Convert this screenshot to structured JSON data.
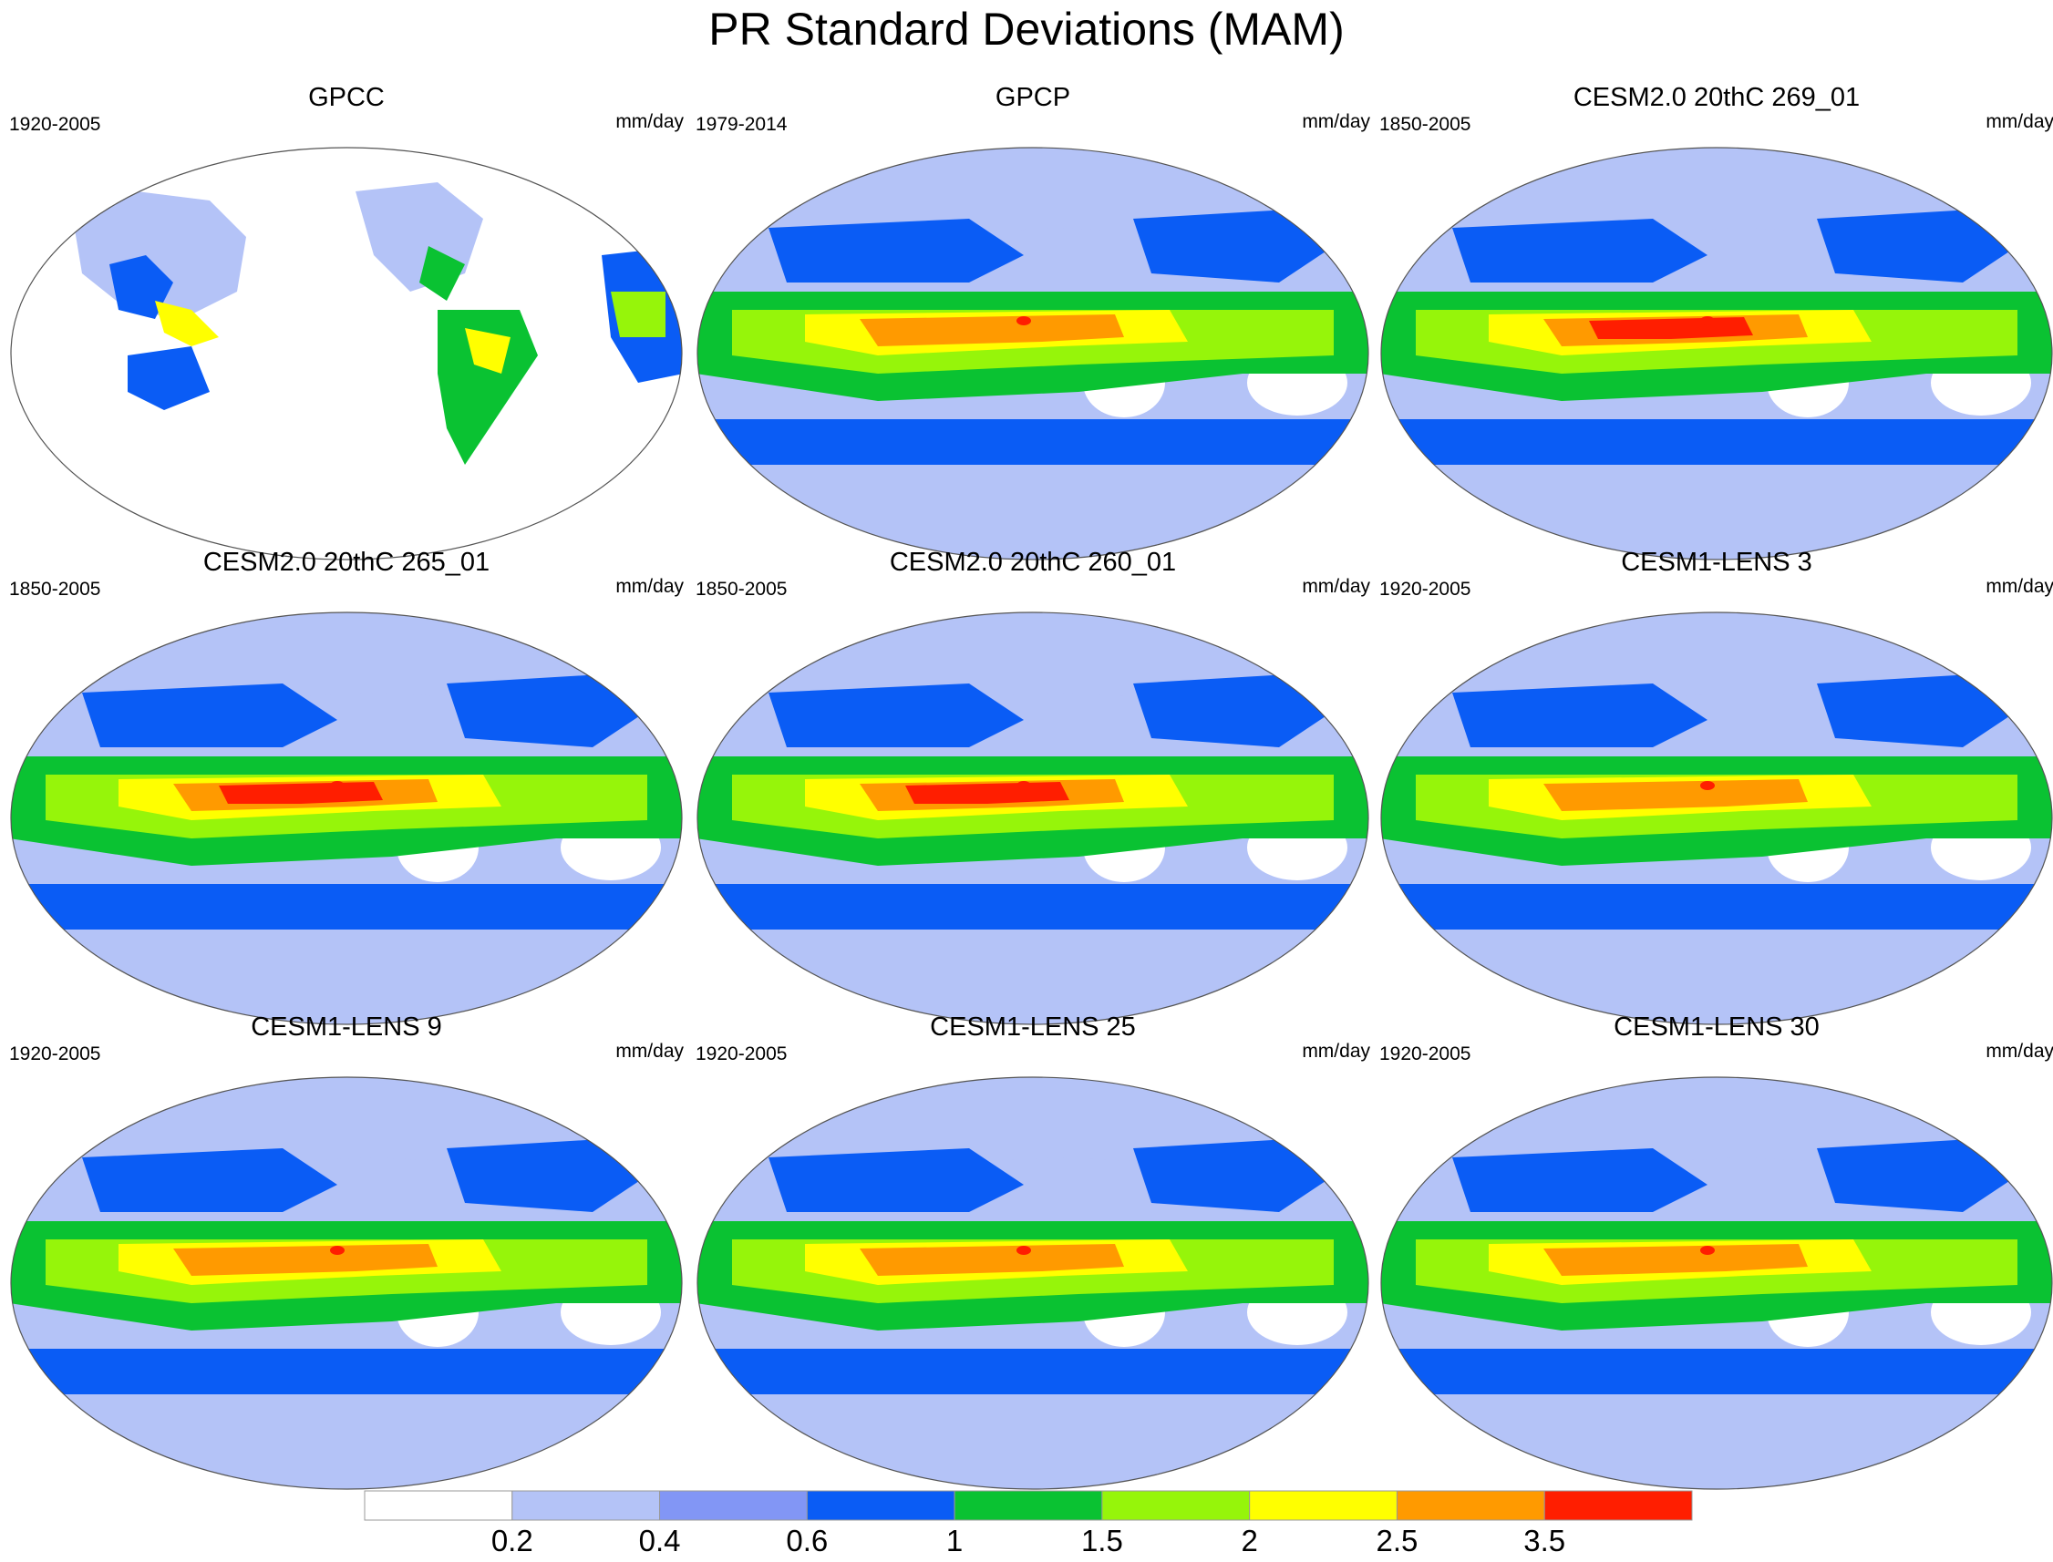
{
  "title": "PR Standard Deviations (MAM)",
  "panels": [
    {
      "title": "GPCC",
      "years": "1920-2005",
      "units": "mm/day",
      "kind": "obs_land"
    },
    {
      "title": "GPCP",
      "years": "1979-2014",
      "units": "mm/day",
      "kind": "obs_global",
      "itcz_peak": 3
    },
    {
      "title": "CESM2.0 20thC 269_01",
      "years": "1850-2005",
      "units": "mm/day",
      "kind": "model",
      "itcz_peak": 4
    },
    {
      "title": "CESM2.0 20thC 265_01",
      "years": "1850-2005",
      "units": "mm/day",
      "kind": "model",
      "itcz_peak": 4
    },
    {
      "title": "CESM2.0 20thC 260_01",
      "years": "1850-2005",
      "units": "mm/day",
      "kind": "model",
      "itcz_peak": 4
    },
    {
      "title": "CESM1-LENS 3",
      "years": "1920-2005",
      "units": "mm/day",
      "kind": "model",
      "itcz_peak": 3
    },
    {
      "title": "CESM1-LENS 9",
      "years": "1920-2005",
      "units": "mm/day",
      "kind": "model",
      "itcz_peak": 3
    },
    {
      "title": "CESM1-LENS 25",
      "years": "1920-2005",
      "units": "mm/day",
      "kind": "model",
      "itcz_peak": 3
    },
    {
      "title": "CESM1-LENS 30",
      "years": "1920-2005",
      "units": "mm/day",
      "kind": "model",
      "itcz_peak": 3
    }
  ],
  "colorbar": {
    "levels": [
      "0.2",
      "0.4",
      "0.6",
      "1",
      "1.5",
      "2",
      "2.5",
      "3.5"
    ],
    "colors": [
      "#ffffff",
      "#b4c3f7",
      "#8296f5",
      "#0a5cf5",
      "#0ac232",
      "#96f50a",
      "#ffff00",
      "#ff9a00",
      "#ff1e00"
    ]
  }
}
